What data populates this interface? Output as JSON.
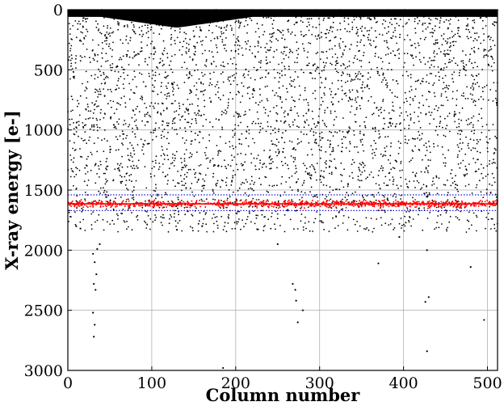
{
  "chart_data": {
    "type": "scatter",
    "xlabel": "Column number",
    "ylabel": "X-ray energy [e-]",
    "xlim": [
      0,
      512
    ],
    "ylim": [
      3000,
      0
    ],
    "y_axis_inverted": true,
    "grid": true,
    "x_ticks": [
      "0",
      "100",
      "200",
      "300",
      "400",
      "500"
    ],
    "y_ticks": [
      "0",
      "500",
      "1000",
      "1500",
      "2000",
      "2500",
      "3000"
    ],
    "dense_band": {
      "y_from": 0,
      "y_to_edges": 60,
      "y_to_center": 150,
      "center_x": 130
    },
    "scatter_region": {
      "y_from": 0,
      "y_to": 1850
    },
    "fit_line": {
      "y": 1615,
      "color": "#ff0000"
    },
    "fit_bounds": {
      "y_low": 1540,
      "y_high": 1670,
      "color": "#0000cc",
      "style": "dotted"
    },
    "red_points_center": 1615,
    "outliers": [
      {
        "x": 30,
        "y": 2030
      },
      {
        "x": 32,
        "y": 2100
      },
      {
        "x": 34,
        "y": 2200
      },
      {
        "x": 31,
        "y": 2280
      },
      {
        "x": 33,
        "y": 2330
      },
      {
        "x": 30,
        "y": 2520
      },
      {
        "x": 32,
        "y": 2620
      },
      {
        "x": 31,
        "y": 2720
      },
      {
        "x": 35,
        "y": 1990
      },
      {
        "x": 38,
        "y": 1950
      },
      {
        "x": 185,
        "y": 2980
      },
      {
        "x": 250,
        "y": 1950
      },
      {
        "x": 268,
        "y": 2280
      },
      {
        "x": 271,
        "y": 2330
      },
      {
        "x": 272,
        "y": 2420
      },
      {
        "x": 280,
        "y": 2500
      },
      {
        "x": 274,
        "y": 2600
      },
      {
        "x": 370,
        "y": 2110
      },
      {
        "x": 395,
        "y": 1890
      },
      {
        "x": 428,
        "y": 2000
      },
      {
        "x": 426,
        "y": 2430
      },
      {
        "x": 430,
        "y": 2390
      },
      {
        "x": 428,
        "y": 2840
      },
      {
        "x": 480,
        "y": 2140
      },
      {
        "x": 496,
        "y": 2580
      },
      {
        "x": 10,
        "y": 1800
      },
      {
        "x": 15,
        "y": 1820
      },
      {
        "x": 130,
        "y": 1830
      },
      {
        "x": 160,
        "y": 1800
      }
    ]
  }
}
